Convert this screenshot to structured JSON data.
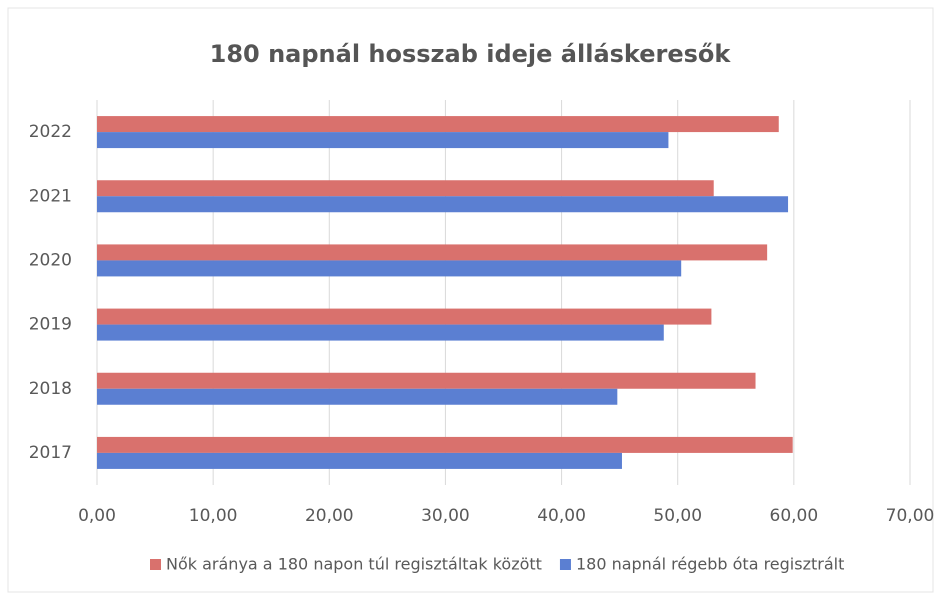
{
  "chart_data": {
    "type": "hbar",
    "title": "180 napnál hosszab ideje álláskeresők",
    "categories": [
      "2017",
      "2018",
      "2019",
      "2020",
      "2021",
      "2022"
    ],
    "series": [
      {
        "name": "Nők aránya a 180 napon túl regisztáltak között",
        "color": "#d9716d",
        "values": [
          59.9,
          56.7,
          52.9,
          57.7,
          53.1,
          58.7
        ]
      },
      {
        "name": "180 napnál régebb óta regisztrált",
        "color": "#5b7fd2",
        "values": [
          45.2,
          44.8,
          48.8,
          50.3,
          59.5,
          49.2
        ]
      }
    ],
    "xlim": [
      0,
      70
    ],
    "xticks": [
      {
        "value": 0,
        "label": "0,00"
      },
      {
        "value": 10,
        "label": "10,00"
      },
      {
        "value": 20,
        "label": "20,00"
      },
      {
        "value": 30,
        "label": "30,00"
      },
      {
        "value": 40,
        "label": "40,00"
      },
      {
        "value": 50,
        "label": "50,00"
      },
      {
        "value": 60,
        "label": "60,00"
      },
      {
        "value": 70,
        "label": "70,00"
      }
    ],
    "grid": true,
    "legend": "bottom"
  }
}
